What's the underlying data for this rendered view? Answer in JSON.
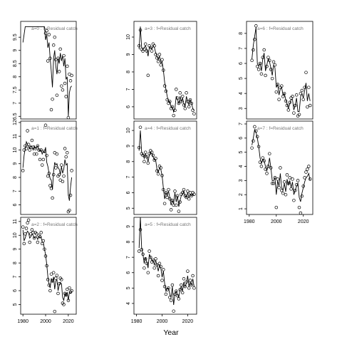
{
  "figure": {
    "xlabel": "Year",
    "panel_label_format": "a={a} : f=Residual catch"
  },
  "chart_data": [
    {
      "type": "line",
      "age": 0,
      "label": "a=0 : f=Residual catch",
      "xlim": [
        1978,
        2027
      ],
      "ylim": [
        6.4,
        10.1
      ],
      "yticks": [
        6.5,
        7.0,
        7.5,
        8.0,
        8.5,
        9.0,
        9.5
      ],
      "xticks": [],
      "show_x_tick_labels": false,
      "x": [
        1980,
        1981,
        1982,
        1983,
        1984,
        1985,
        1986,
        1987,
        1988,
        1989,
        1990,
        1991,
        1992,
        1993,
        1994,
        1995,
        1996,
        1997,
        1998,
        1999,
        2000,
        2001,
        2002,
        2003,
        2004,
        2005,
        2006,
        2007,
        2008,
        2009,
        2010,
        2011,
        2012,
        2013,
        2014,
        2015,
        2016,
        2017,
        2018,
        2019,
        2020,
        2021,
        2022,
        2023
      ],
      "points": [
        null,
        null,
        null,
        null,
        null,
        null,
        null,
        null,
        null,
        null,
        null,
        null,
        null,
        null,
        null,
        null,
        null,
        null,
        null,
        null,
        9.65,
        9.75,
        8.6,
        9.6,
        8.7,
        6.75,
        7.15,
        9.2,
        9.5,
        8.65,
        7.3,
        8.7,
        8.2,
        9.05,
        7.65,
        7.5,
        8.8,
        7.75,
        7.25,
        8.4,
        6.45,
        8.1,
        7.85,
        8.05
      ],
      "fit": [
        9.3,
        9.6,
        9.9,
        9.9,
        9.9,
        9.9,
        9.9,
        9.9,
        9.9,
        9.9,
        9.9,
        9.9,
        9.9,
        9.9,
        9.9,
        9.9,
        9.9,
        9.9,
        9.9,
        9.9,
        9.4,
        9.6,
        9.1,
        9.3,
        8.7,
        8.2,
        7.6,
        8.7,
        9.0,
        8.4,
        8.1,
        8.7,
        8.5,
        8.9,
        8.6,
        8.8,
        8.4,
        8.7,
        7.9,
        8.0,
        6.5,
        7.4,
        7.6,
        7.65
      ]
    },
    {
      "type": "line",
      "age": 1,
      "label": "a=1 : f=Residual catch",
      "xlim": [
        1978,
        2027
      ],
      "ylim": [
        5.3,
        12.1
      ],
      "yticks": [
        6,
        7,
        8,
        9,
        10,
        11,
        12
      ],
      "xticks": [],
      "show_x_tick_labels": false,
      "x": [
        1980,
        1981,
        1982,
        1983,
        1984,
        1985,
        1986,
        1987,
        1988,
        1989,
        1990,
        1991,
        1992,
        1993,
        1994,
        1995,
        1996,
        1997,
        1998,
        1999,
        2000,
        2001,
        2002,
        2003,
        2004,
        2005,
        2006,
        2007,
        2008,
        2009,
        2010,
        2011,
        2012,
        2013,
        2014,
        2015,
        2016,
        2017,
        2018,
        2019,
        2020,
        2021,
        2022,
        2023
      ],
      "points": [
        8.5,
        10.0,
        10.3,
        10.1,
        11.4,
        10.4,
        10.0,
        10.2,
        10.7,
        10.2,
        9.7,
        10.1,
        9.7,
        10.3,
        10.0,
        9.3,
        10.0,
        8.9,
        9.3,
        9.9,
        11.8,
        9.6,
        8.1,
        8.3,
        7.4,
        7.2,
        6.5,
        8.2,
        9.8,
        8.7,
        9.7,
        8.1,
        8.2,
        7.8,
        8.9,
        7.7,
        8.1,
        10.1,
        9.5,
        9.8,
        5.5,
        5.6,
        6.7,
        8.5
      ],
      "fit": [
        8.7,
        9.6,
        10.1,
        10.6,
        10.4,
        10.2,
        10.1,
        10.3,
        10.2,
        10.0,
        10.3,
        10.1,
        10.2,
        10.3,
        10.0,
        9.9,
        10.0,
        9.7,
        9.9,
        9.8,
        10.2,
        9.1,
        8.8,
        8.3,
        7.9,
        7.8,
        7.1,
        8.4,
        9.1,
        8.9,
        9.0,
        8.7,
        8.6,
        8.2,
        8.8,
        8.3,
        8.6,
        9.3,
        8.9,
        9.0,
        6.7,
        6.3,
        7.3,
        8.0
      ]
    },
    {
      "type": "line",
      "age": 2,
      "label": "a=2 : f=Residual catch",
      "xlim": [
        1978,
        2027
      ],
      "ylim": [
        4.3,
        11.3
      ],
      "yticks": [
        5,
        6,
        7,
        8,
        9,
        10,
        11
      ],
      "xticks": [
        1980,
        2000,
        2020
      ],
      "show_x_tick_labels": true,
      "x": [
        1980,
        1981,
        1982,
        1983,
        1984,
        1985,
        1986,
        1987,
        1988,
        1989,
        1990,
        1991,
        1992,
        1993,
        1994,
        1995,
        1996,
        1997,
        1998,
        1999,
        2000,
        2001,
        2002,
        2003,
        2004,
        2005,
        2006,
        2007,
        2008,
        2009,
        2010,
        2011,
        2012,
        2013,
        2014,
        2015,
        2016,
        2017,
        2018,
        2019,
        2020,
        2021,
        2022,
        2023
      ],
      "points": [
        10.6,
        9.4,
        10.1,
        10.5,
        10.9,
        11.1,
        9.5,
        10.1,
        10.4,
        10.2,
        9.8,
        10.2,
        10.1,
        9.5,
        10.0,
        9.9,
        10.2,
        9.4,
        9.6,
        9.0,
        8.5,
        7.8,
        6.8,
        6.4,
        6.0,
        7.2,
        6.7,
        7.3,
        4.5,
        6.9,
        7.1,
        5.8,
        6.5,
        6.9,
        6.8,
        5.1,
        5.0,
        5.8,
        5.7,
        6.1,
        5.3,
        6.2,
        5.9,
        6.0
      ],
      "fit": [
        10.4,
        9.6,
        9.8,
        10.1,
        10.3,
        10.2,
        9.8,
        9.9,
        10.1,
        10.0,
        9.8,
        9.9,
        9.9,
        9.7,
        9.9,
        9.8,
        9.9,
        9.5,
        9.5,
        9.0,
        8.6,
        7.9,
        7.0,
        6.5,
        6.2,
        6.9,
        6.6,
        7.0,
        6.1,
        6.7,
        6.8,
        6.0,
        6.4,
        6.6,
        6.5,
        5.5,
        5.3,
        5.8,
        5.6,
        5.9,
        5.3,
        5.9,
        5.8,
        5.9
      ]
    },
    {
      "type": "line",
      "age": 3,
      "label": "a=3 : f=Residual catch",
      "xlim": [
        1978,
        2027
      ],
      "ylim": [
        5.3,
        10.9
      ],
      "yticks": [
        6,
        7,
        8,
        9,
        10
      ],
      "xticks": [],
      "show_x_tick_labels": false,
      "x": [
        1982,
        1983,
        1984,
        1985,
        1986,
        1987,
        1988,
        1989,
        1990,
        1991,
        1992,
        1993,
        1994,
        1995,
        1996,
        1997,
        1998,
        1999,
        2000,
        2001,
        2002,
        2003,
        2004,
        2005,
        2006,
        2007,
        2008,
        2009,
        2010,
        2011,
        2012,
        2013,
        2014,
        2015,
        2016,
        2017,
        2018,
        2019,
        2020,
        2021,
        2022,
        2023,
        2024,
        2025
      ],
      "points": [
        9.5,
        10.4,
        9.3,
        9.2,
        9.3,
        9.6,
        9.2,
        7.8,
        9.5,
        9.4,
        9.2,
        9.6,
        9.5,
        9.0,
        8.8,
        8.6,
        9.0,
        8.4,
        8.7,
        8.1,
        7.2,
        6.9,
        6.4,
        6.2,
        6.3,
        5.9,
        6.0,
        5.5,
        5.8,
        7.0,
        6.5,
        6.2,
        6.8,
        6.3,
        6.6,
        6.1,
        5.9,
        6.8,
        6.3,
        6.0,
        6.4,
        6.2,
        5.8,
        5.6
      ],
      "fit": [
        9.3,
        10.6,
        9.4,
        9.3,
        9.4,
        9.5,
        9.3,
        8.9,
        9.4,
        9.4,
        9.3,
        9.5,
        9.4,
        9.1,
        8.9,
        8.7,
        8.9,
        8.5,
        8.6,
        8.1,
        7.4,
        7.0,
        6.6,
        6.3,
        6.3,
        6.0,
        6.0,
        5.7,
        5.9,
        6.6,
        6.4,
        6.2,
        6.6,
        6.3,
        6.5,
        6.2,
        6.0,
        6.6,
        6.3,
        6.1,
        6.4,
        6.2,
        5.9,
        5.8
      ]
    },
    {
      "type": "line",
      "age": 4,
      "label": "a=4 : f=Residual catch",
      "xlim": [
        1978,
        2027
      ],
      "ylim": [
        4.6,
        10.6
      ],
      "yticks": [
        5,
        6,
        7,
        8,
        9,
        10
      ],
      "xticks": [],
      "show_x_tick_labels": false,
      "x": [
        1982,
        1983,
        1984,
        1985,
        1986,
        1987,
        1988,
        1989,
        1990,
        1991,
        1992,
        1993,
        1994,
        1995,
        1996,
        1997,
        1998,
        1999,
        2000,
        2001,
        2002,
        2003,
        2004,
        2005,
        2006,
        2007,
        2008,
        2009,
        2010,
        2011,
        2012,
        2013,
        2014,
        2015,
        2016,
        2017,
        2018,
        2019,
        2020,
        2021,
        2022,
        2023,
        2024,
        2025
      ],
      "points": [
        8.9,
        10.2,
        8.5,
        8.4,
        8.0,
        8.6,
        8.3,
        7.9,
        8.5,
        8.7,
        8.6,
        8.4,
        8.1,
        8.2,
        7.4,
        7.2,
        7.7,
        7.6,
        7.1,
        6.2,
        5.3,
        6.0,
        5.7,
        6.2,
        5.6,
        4.9,
        5.5,
        5.2,
        6.1,
        5.2,
        5.8,
        4.8,
        5.4,
        5.9,
        6.0,
        6.2,
        5.8,
        5.7,
        6.1,
        5.6,
        6.0,
        5.8,
        6.0,
        5.9
      ],
      "fit": [
        8.7,
        10.0,
        8.6,
        8.5,
        8.2,
        8.5,
        8.3,
        8.0,
        8.4,
        8.6,
        8.5,
        8.3,
        8.1,
        8.1,
        7.5,
        7.3,
        7.6,
        7.5,
        7.1,
        6.3,
        5.6,
        6.0,
        5.8,
        6.1,
        5.7,
        5.2,
        5.5,
        5.3,
        6.0,
        5.4,
        5.8,
        5.1,
        5.5,
        5.8,
        5.9,
        6.1,
        5.8,
        5.7,
        6.0,
        5.7,
        5.9,
        5.8,
        5.9,
        5.8
      ]
    },
    {
      "type": "line",
      "age": 5,
      "label": "a=5 : f=Residual catch",
      "xlim": [
        1978,
        2027
      ],
      "ylim": [
        3.3,
        9.6
      ],
      "yticks": [
        4,
        5,
        6,
        7,
        8,
        9
      ],
      "xticks": [
        1980,
        2000,
        2020
      ],
      "show_x_tick_labels": true,
      "x": [
        1982,
        1983,
        1984,
        1985,
        1986,
        1987,
        1988,
        1989,
        1990,
        1991,
        1992,
        1993,
        1994,
        1995,
        1996,
        1997,
        1998,
        1999,
        2000,
        2001,
        2002,
        2003,
        2004,
        2005,
        2006,
        2007,
        2008,
        2009,
        2010,
        2011,
        2012,
        2013,
        2014,
        2015,
        2016,
        2017,
        2018,
        2019,
        2020,
        2021,
        2022,
        2023,
        2024,
        2025
      ],
      "points": [
        7.4,
        8.8,
        7.5,
        7.2,
        6.3,
        6.9,
        6.6,
        6.0,
        7.4,
        7.0,
        6.7,
        6.8,
        6.3,
        6.9,
        6.5,
        5.8,
        6.6,
        6.4,
        5.5,
        6.2,
        5.1,
        4.6,
        4.9,
        5.0,
        4.4,
        4.2,
        5.2,
        3.5,
        4.6,
        4.8,
        4.5,
        4.3,
        4.9,
        5.2,
        4.7,
        5.6,
        5.1,
        5.4,
        6.1,
        5.0,
        5.5,
        5.2,
        5.8,
        5.0
      ],
      "fit": [
        7.6,
        9.6,
        7.6,
        7.2,
        6.6,
        7.0,
        6.7,
        6.3,
        7.2,
        7.0,
        6.8,
        6.8,
        6.5,
        6.8,
        6.5,
        6.1,
        6.5,
        6.3,
        5.7,
        6.1,
        5.3,
        4.8,
        5.0,
        5.0,
        4.6,
        4.4,
        5.1,
        3.9,
        4.6,
        4.8,
        4.6,
        4.4,
        4.9,
        5.1,
        4.8,
        5.4,
        5.1,
        5.3,
        5.8,
        5.1,
        5.4,
        5.2,
        5.6,
        5.1
      ]
    },
    {
      "type": "line",
      "age": 6,
      "label": "a=6 : f=Residual catch",
      "xlim": [
        1978,
        2027
      ],
      "ylim": [
        2.3,
        8.8
      ],
      "yticks": [
        3,
        4,
        5,
        6,
        7,
        8
      ],
      "xticks": [],
      "show_x_tick_labels": false,
      "x": [
        1982,
        1983,
        1984,
        1985,
        1986,
        1987,
        1988,
        1989,
        1990,
        1991,
        1992,
        1993,
        1994,
        1995,
        1996,
        1997,
        1998,
        1999,
        2000,
        2001,
        2002,
        2003,
        2004,
        2005,
        2006,
        2007,
        2008,
        2009,
        2010,
        2011,
        2012,
        2013,
        2014,
        2015,
        2016,
        2017,
        2018,
        2019,
        2020,
        2021,
        2022,
        2023,
        2024,
        2025
      ],
      "points": [
        6.2,
        6.9,
        7.6,
        8.5,
        5.8,
        5.6,
        6.0,
        5.3,
        6.4,
        6.9,
        5.2,
        5.8,
        6.4,
        6.2,
        5.6,
        5.0,
        6.1,
        5.9,
        4.1,
        4.6,
        3.6,
        4.4,
        4.5,
        3.8,
        4.0,
        3.5,
        3.2,
        2.9,
        3.4,
        3.7,
        3.8,
        2.7,
        3.2,
        3.9,
        2.5,
        2.6,
        4.0,
        4.2,
        3.6,
        4.4,
        5.4,
        3.1,
        4.4,
        3.2
      ],
      "fit": [
        6.3,
        7.2,
        7.8,
        8.4,
        6.0,
        5.8,
        6.0,
        5.5,
        6.3,
        6.7,
        5.5,
        5.9,
        6.3,
        6.1,
        5.7,
        5.2,
        5.9,
        5.7,
        4.4,
        4.6,
        3.9,
        4.3,
        4.4,
        3.9,
        4.0,
        3.6,
        3.3,
        3.0,
        3.3,
        3.6,
        3.6,
        2.9,
        3.2,
        3.7,
        2.8,
        2.8,
        3.8,
        4.0,
        3.7,
        4.2,
        4.7,
        3.5,
        4.0,
        3.5
      ]
    },
    {
      "type": "line",
      "age": 7,
      "label": "a=7 : f=Residual catch",
      "xlim": [
        1978,
        2027
      ],
      "ylim": [
        0.6,
        7.2
      ],
      "yticks": [
        1,
        2,
        3,
        4,
        5,
        6,
        7
      ],
      "xticks": [
        1980,
        2000,
        2020
      ],
      "show_x_tick_labels": true,
      "x": [
        1982,
        1983,
        1984,
        1985,
        1986,
        1987,
        1988,
        1989,
        1990,
        1991,
        1992,
        1993,
        1994,
        1995,
        1996,
        1997,
        1998,
        1999,
        2000,
        2001,
        2002,
        2003,
        2004,
        2005,
        2006,
        2007,
        2008,
        2009,
        2010,
        2011,
        2012,
        2013,
        2014,
        2015,
        2016,
        2017,
        2018,
        2019,
        2020,
        2021,
        2022,
        2023,
        2024,
        2025
      ],
      "points": [
        5.3,
        5.8,
        6.8,
        6.5,
        6.1,
        5.4,
        4.3,
        4.0,
        4.6,
        4.4,
        3.8,
        3.5,
        4.0,
        4.9,
        3.9,
        2.8,
        2.8,
        3.2,
        1.1,
        3.1,
        2.5,
        3.9,
        2.3,
        2.1,
        2.9,
        2.0,
        3.4,
        2.8,
        3.2,
        2.4,
        3.1,
        1.6,
        2.3,
        2.7,
        3.0,
        1.1,
        0.7,
        1.9,
        2.6,
        3.2,
        3.6,
        3.8,
        4.0,
        3.1
      ],
      "fit": [
        5.5,
        6.0,
        6.6,
        6.4,
        6.0,
        5.4,
        4.6,
        4.2,
        4.5,
        4.4,
        4.0,
        3.7,
        4.0,
        4.6,
        3.9,
        3.0,
        3.0,
        3.2,
        2.0,
        3.0,
        2.6,
        3.5,
        2.5,
        2.3,
        2.8,
        2.2,
        3.1,
        2.7,
        3.0,
        2.5,
        2.9,
        2.0,
        2.3,
        2.6,
        2.8,
        1.8,
        1.5,
        2.1,
        2.5,
        2.9,
        3.2,
        3.3,
        3.5,
        3.0
      ]
    }
  ]
}
